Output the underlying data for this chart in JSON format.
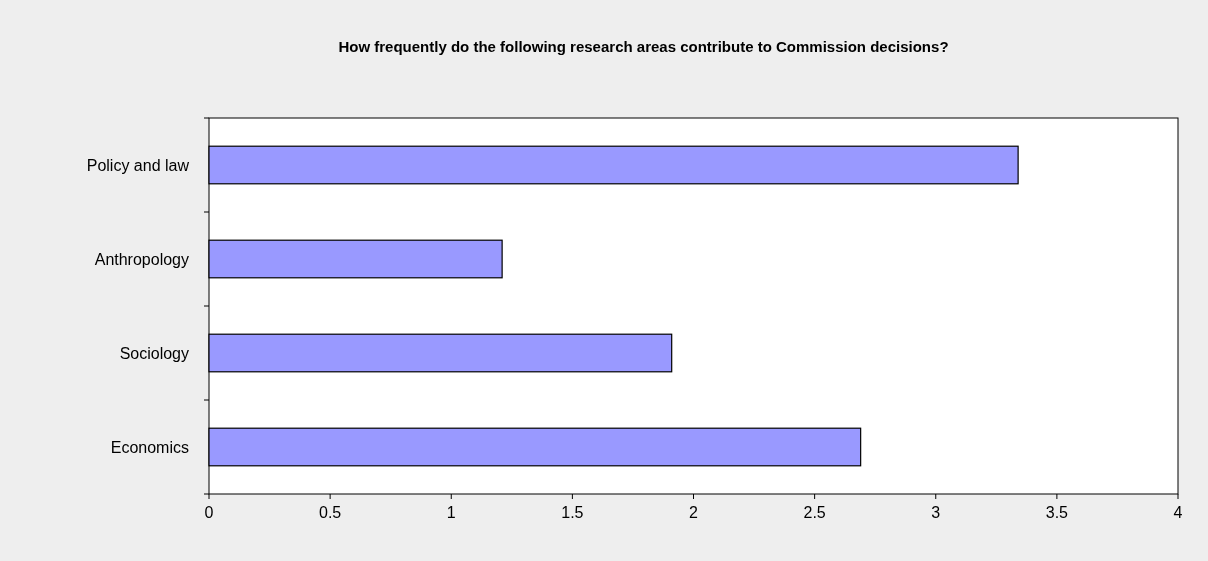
{
  "chart_data": {
    "type": "bar",
    "orientation": "horizontal",
    "title": "How frequently do the following research areas contribute to Commission decisions?",
    "categories": [
      "Policy and law",
      "Anthropology",
      "Sociology",
      "Economics"
    ],
    "values": [
      3.34,
      1.21,
      1.91,
      2.69
    ],
    "color": "#9999ff",
    "xlim": [
      0,
      4
    ],
    "xticks": [
      0,
      0.5,
      1,
      1.5,
      2,
      2.5,
      3,
      3.5,
      4
    ],
    "grid": false
  }
}
